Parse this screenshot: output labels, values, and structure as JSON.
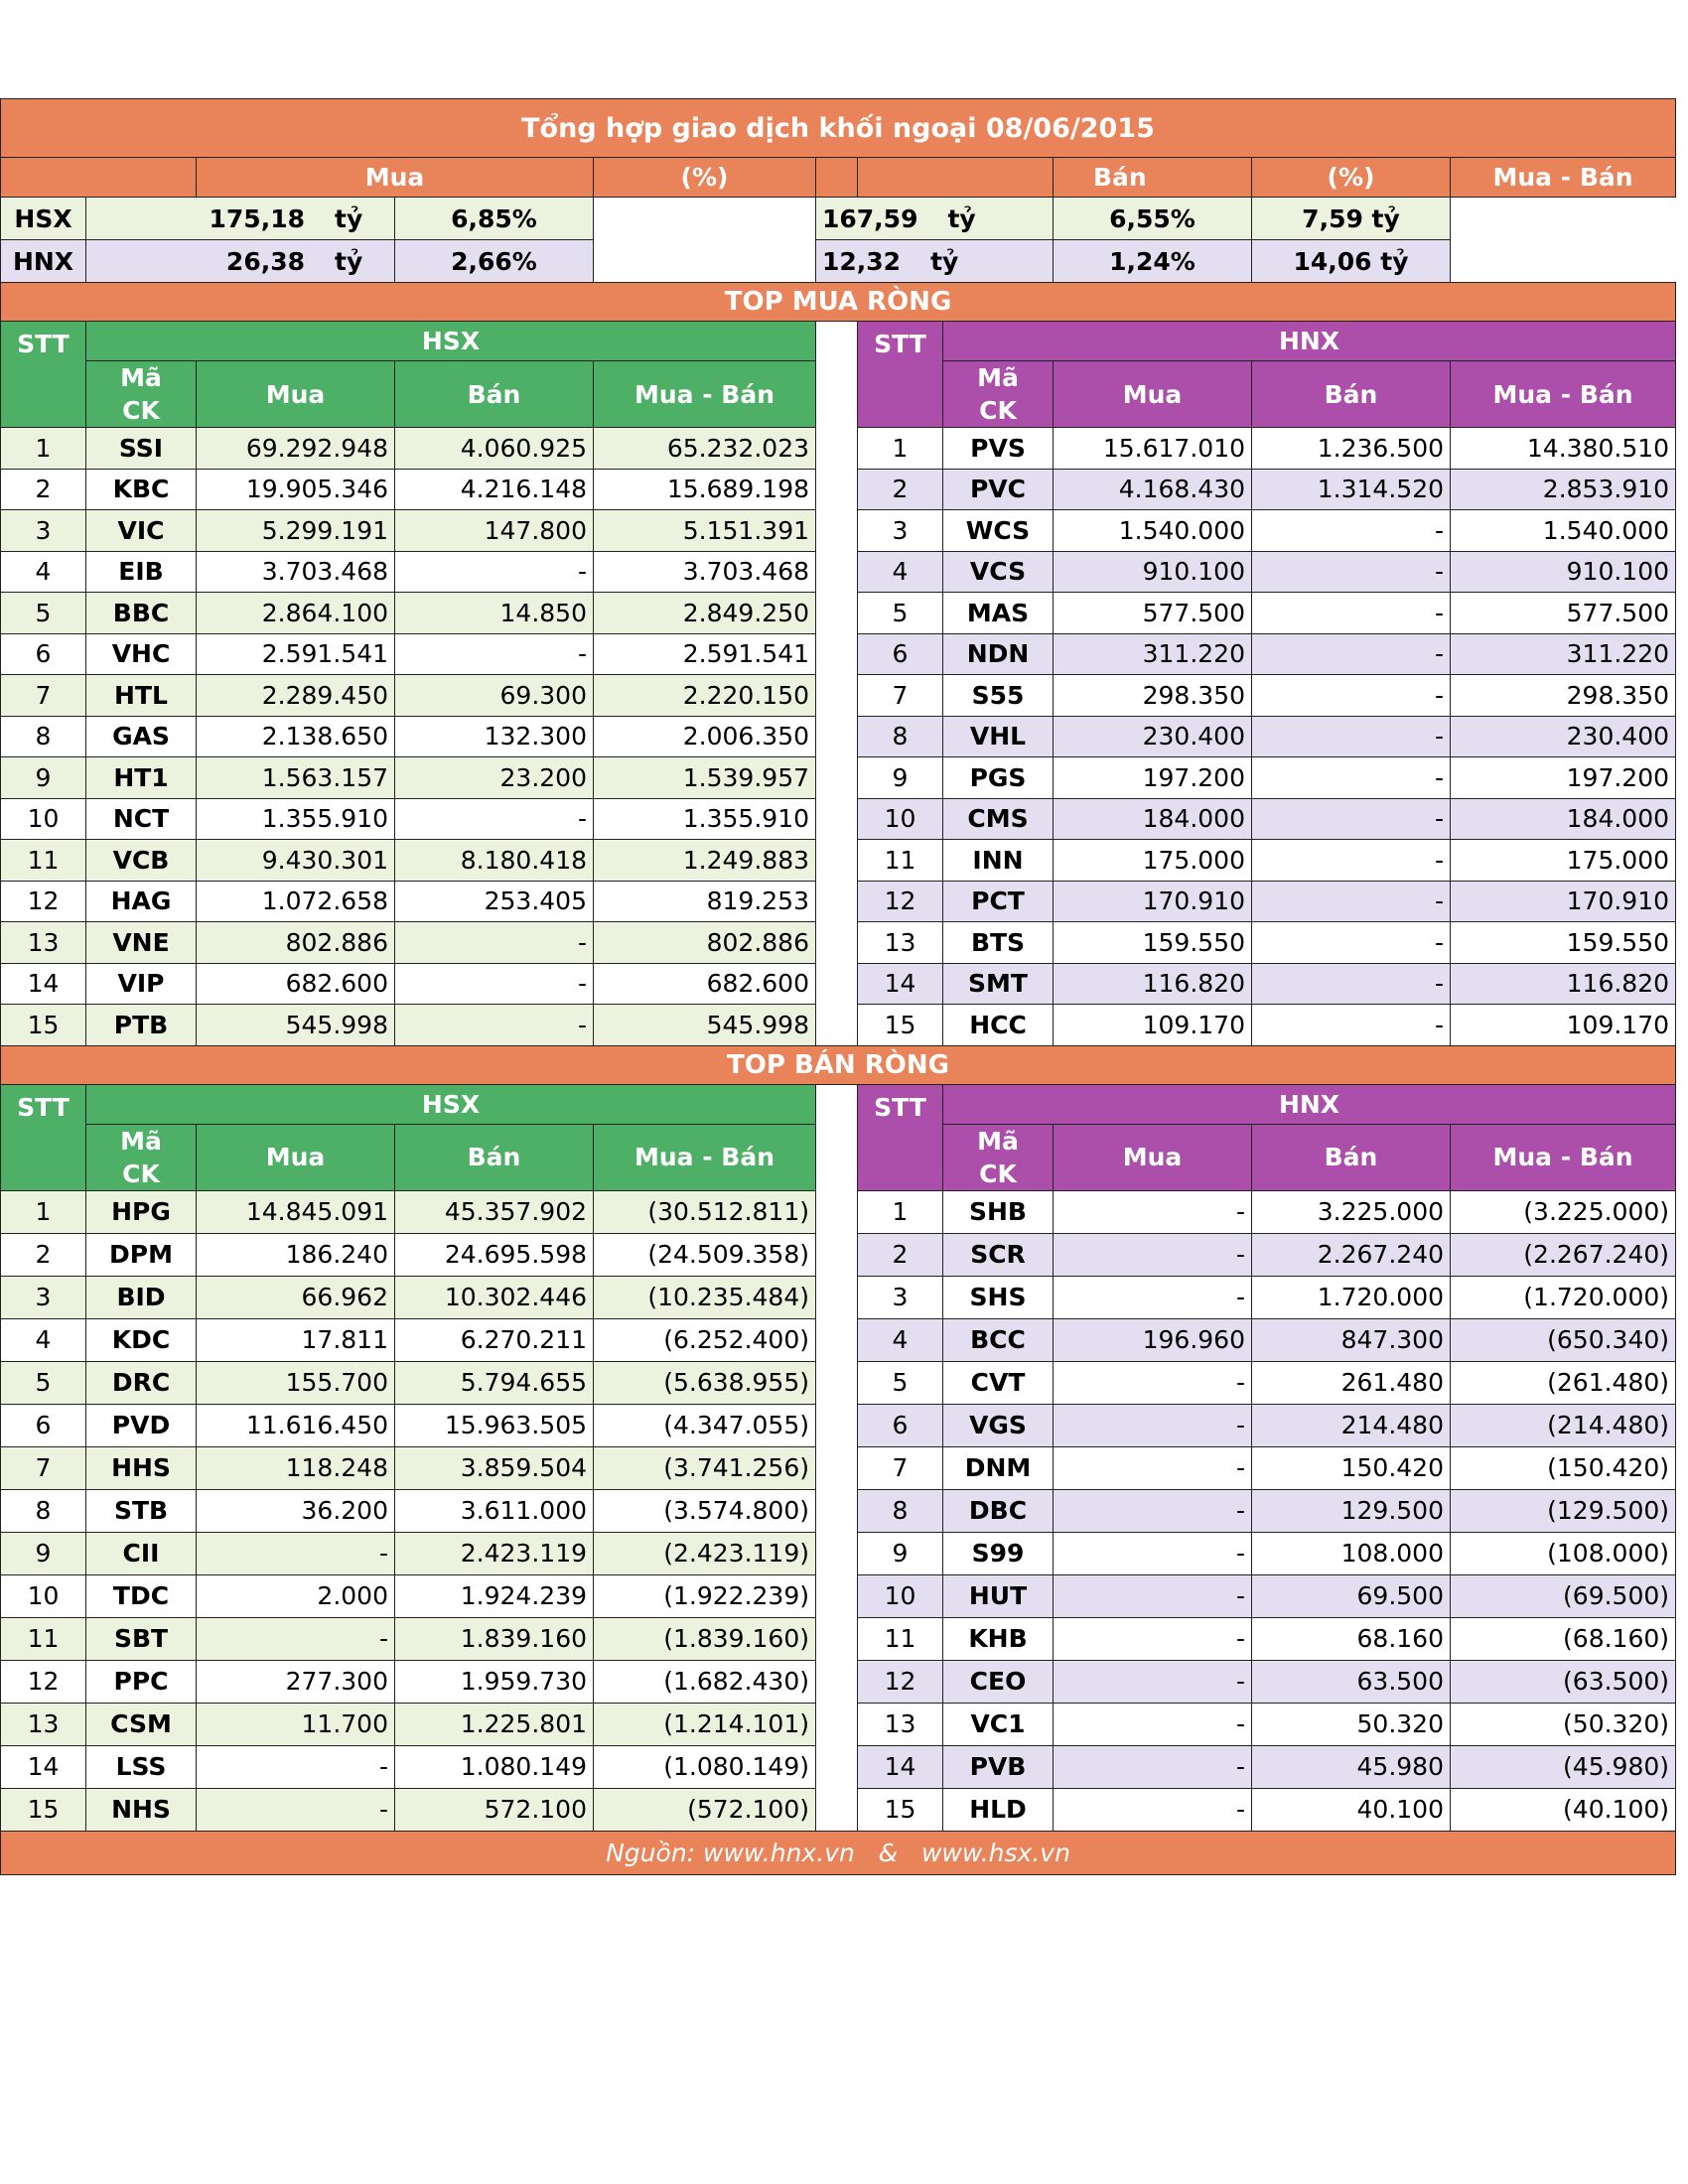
{
  "title": "Tổng hợp giao dịch khối ngoại 08/06/2015",
  "summary": {
    "headers": {
      "mua": "Mua",
      "pct1": "(%)",
      "ban": "Bán",
      "pct2": "(%)",
      "net": "Mua - Bán"
    },
    "unit": "tỷ",
    "rows": [
      {
        "exchange": "HSX",
        "mua": "175,18",
        "mua_pct": "6,85%",
        "ban": "167,59",
        "ban_pct": "6,55%",
        "net": "7,59 tỷ"
      },
      {
        "exchange": "HNX",
        "mua": "26,38",
        "mua_pct": "2,66%",
        "ban": "12,32",
        "ban_pct": "1,24%",
        "net": "14,06 tỷ"
      }
    ]
  },
  "col_headers": {
    "stt": "STT",
    "ma_line1": "Mã",
    "ma_line2": "CK",
    "mua": "Mua",
    "ban": "Bán",
    "net": "Mua - Bán"
  },
  "top_mua": {
    "title": "TOP MUA RÒNG",
    "hsx_label": "HSX",
    "hnx_label": "HNX",
    "rows": [
      {
        "stt": "1",
        "hsx": [
          "SSI",
          "69.292.948",
          "4.060.925",
          "65.232.023"
        ],
        "hnx": [
          "PVS",
          "15.617.010",
          "1.236.500",
          "14.380.510"
        ]
      },
      {
        "stt": "2",
        "hsx": [
          "KBC",
          "19.905.346",
          "4.216.148",
          "15.689.198"
        ],
        "hnx": [
          "PVC",
          "4.168.430",
          "1.314.520",
          "2.853.910"
        ]
      },
      {
        "stt": "3",
        "hsx": [
          "VIC",
          "5.299.191",
          "147.800",
          "5.151.391"
        ],
        "hnx": [
          "WCS",
          "1.540.000",
          "-",
          "1.540.000"
        ]
      },
      {
        "stt": "4",
        "hsx": [
          "EIB",
          "3.703.468",
          "-",
          "3.703.468"
        ],
        "hnx": [
          "VCS",
          "910.100",
          "-",
          "910.100"
        ]
      },
      {
        "stt": "5",
        "hsx": [
          "BBC",
          "2.864.100",
          "14.850",
          "2.849.250"
        ],
        "hnx": [
          "MAS",
          "577.500",
          "-",
          "577.500"
        ]
      },
      {
        "stt": "6",
        "hsx": [
          "VHC",
          "2.591.541",
          "-",
          "2.591.541"
        ],
        "hnx": [
          "NDN",
          "311.220",
          "-",
          "311.220"
        ]
      },
      {
        "stt": "7",
        "hsx": [
          "HTL",
          "2.289.450",
          "69.300",
          "2.220.150"
        ],
        "hnx": [
          "S55",
          "298.350",
          "-",
          "298.350"
        ]
      },
      {
        "stt": "8",
        "hsx": [
          "GAS",
          "2.138.650",
          "132.300",
          "2.006.350"
        ],
        "hnx": [
          "VHL",
          "230.400",
          "-",
          "230.400"
        ]
      },
      {
        "stt": "9",
        "hsx": [
          "HT1",
          "1.563.157",
          "23.200",
          "1.539.957"
        ],
        "hnx": [
          "PGS",
          "197.200",
          "-",
          "197.200"
        ]
      },
      {
        "stt": "10",
        "hsx": [
          "NCT",
          "1.355.910",
          "-",
          "1.355.910"
        ],
        "hnx": [
          "CMS",
          "184.000",
          "-",
          "184.000"
        ]
      },
      {
        "stt": "11",
        "hsx": [
          "VCB",
          "9.430.301",
          "8.180.418",
          "1.249.883"
        ],
        "hnx": [
          "INN",
          "175.000",
          "-",
          "175.000"
        ]
      },
      {
        "stt": "12",
        "hsx": [
          "HAG",
          "1.072.658",
          "253.405",
          "819.253"
        ],
        "hnx": [
          "PCT",
          "170.910",
          "-",
          "170.910"
        ]
      },
      {
        "stt": "13",
        "hsx": [
          "VNE",
          "802.886",
          "-",
          "802.886"
        ],
        "hnx": [
          "BTS",
          "159.550",
          "-",
          "159.550"
        ]
      },
      {
        "stt": "14",
        "hsx": [
          "VIP",
          "682.600",
          "-",
          "682.600"
        ],
        "hnx": [
          "SMT",
          "116.820",
          "-",
          "116.820"
        ]
      },
      {
        "stt": "15",
        "hsx": [
          "PTB",
          "545.998",
          "-",
          "545.998"
        ],
        "hnx": [
          "HCC",
          "109.170",
          "-",
          "109.170"
        ]
      }
    ]
  },
  "top_ban": {
    "title": "TOP BÁN RÒNG",
    "hsx_label": "HSX",
    "hnx_label": "HNX",
    "rows": [
      {
        "stt": "1",
        "hsx": [
          "HPG",
          "14.845.091",
          "45.357.902",
          "(30.512.811)"
        ],
        "hnx": [
          "SHB",
          "-",
          "3.225.000",
          "(3.225.000)"
        ]
      },
      {
        "stt": "2",
        "hsx": [
          "DPM",
          "186.240",
          "24.695.598",
          "(24.509.358)"
        ],
        "hnx": [
          "SCR",
          "-",
          "2.267.240",
          "(2.267.240)"
        ]
      },
      {
        "stt": "3",
        "hsx": [
          "BID",
          "66.962",
          "10.302.446",
          "(10.235.484)"
        ],
        "hnx": [
          "SHS",
          "-",
          "1.720.000",
          "(1.720.000)"
        ]
      },
      {
        "stt": "4",
        "hsx": [
          "KDC",
          "17.811",
          "6.270.211",
          "(6.252.400)"
        ],
        "hnx": [
          "BCC",
          "196.960",
          "847.300",
          "(650.340)"
        ]
      },
      {
        "stt": "5",
        "hsx": [
          "DRC",
          "155.700",
          "5.794.655",
          "(5.638.955)"
        ],
        "hnx": [
          "CVT",
          "-",
          "261.480",
          "(261.480)"
        ]
      },
      {
        "stt": "6",
        "hsx": [
          "PVD",
          "11.616.450",
          "15.963.505",
          "(4.347.055)"
        ],
        "hnx": [
          "VGS",
          "-",
          "214.480",
          "(214.480)"
        ]
      },
      {
        "stt": "7",
        "hsx": [
          "HHS",
          "118.248",
          "3.859.504",
          "(3.741.256)"
        ],
        "hnx": [
          "DNM",
          "-",
          "150.420",
          "(150.420)"
        ]
      },
      {
        "stt": "8",
        "hsx": [
          "STB",
          "36.200",
          "3.611.000",
          "(3.574.800)"
        ],
        "hnx": [
          "DBC",
          "-",
          "129.500",
          "(129.500)"
        ]
      },
      {
        "stt": "9",
        "hsx": [
          "CII",
          "-",
          "2.423.119",
          "(2.423.119)"
        ],
        "hnx": [
          "S99",
          "-",
          "108.000",
          "(108.000)"
        ]
      },
      {
        "stt": "10",
        "hsx": [
          "TDC",
          "2.000",
          "1.924.239",
          "(1.922.239)"
        ],
        "hnx": [
          "HUT",
          "-",
          "69.500",
          "(69.500)"
        ]
      },
      {
        "stt": "11",
        "hsx": [
          "SBT",
          "-",
          "1.839.160",
          "(1.839.160)"
        ],
        "hnx": [
          "KHB",
          "-",
          "68.160",
          "(68.160)"
        ]
      },
      {
        "stt": "12",
        "hsx": [
          "PPC",
          "277.300",
          "1.959.730",
          "(1.682.430)"
        ],
        "hnx": [
          "CEO",
          "-",
          "63.500",
          "(63.500)"
        ]
      },
      {
        "stt": "13",
        "hsx": [
          "CSM",
          "11.700",
          "1.225.801",
          "(1.214.101)"
        ],
        "hnx": [
          "VC1",
          "-",
          "50.320",
          "(50.320)"
        ]
      },
      {
        "stt": "14",
        "hsx": [
          "LSS",
          "-",
          "1.080.149",
          "(1.080.149)"
        ],
        "hnx": [
          "PVB",
          "-",
          "45.980",
          "(45.980)"
        ]
      },
      {
        "stt": "15",
        "hsx": [
          "NHS",
          "-",
          "572.100",
          "(572.100)"
        ],
        "hnx": [
          "HLD",
          "-",
          "40.100",
          "(40.100)"
        ]
      }
    ]
  },
  "footer": "Nguồn: www.hnx.vn   &   www.hsx.vn",
  "colors": {
    "orange": "#e9835a",
    "green": "#4eaf66",
    "purple": "#ab4fab",
    "light_green": "#ebf3df",
    "lavender": "#e3dff0"
  }
}
